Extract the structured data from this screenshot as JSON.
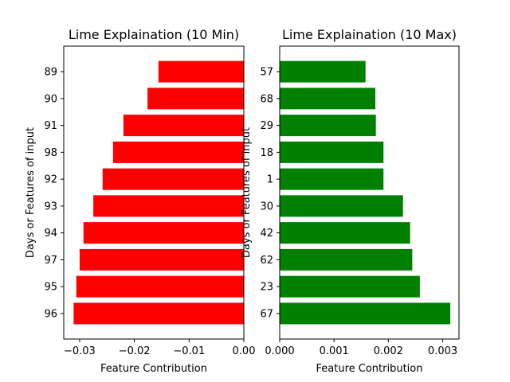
{
  "chart_data": [
    {
      "type": "bar",
      "orientation": "horizontal",
      "title": "Lime Explaination (10 Min)",
      "xlabel": "Feature Contribution",
      "ylabel": "Days or Features of input",
      "categories": [
        "96",
        "95",
        "97",
        "94",
        "93",
        "92",
        "98",
        "91",
        "90",
        "89"
      ],
      "values": [
        -0.0311,
        -0.0306,
        -0.03,
        -0.0293,
        -0.0275,
        -0.0258,
        -0.0239,
        -0.022,
        -0.0176,
        -0.0156
      ],
      "color": "#ff0000",
      "xlim": [
        -0.0329,
        0.0
      ],
      "xticks": [
        -0.03,
        -0.02,
        -0.01,
        0.0
      ],
      "xtick_labels": [
        "−0.03",
        "−0.02",
        "−0.01",
        "0.00"
      ],
      "grid": false
    },
    {
      "type": "bar",
      "orientation": "horizontal",
      "title": "Lime Explaination (10 Max)",
      "xlabel": "Feature Contribution",
      "ylabel": "Days or Features of input",
      "categories": [
        "67",
        "23",
        "62",
        "42",
        "30",
        "1",
        "18",
        "29",
        "68",
        "57"
      ],
      "values": [
        0.00314,
        0.00258,
        0.00244,
        0.0024,
        0.00227,
        0.00191,
        0.00191,
        0.00177,
        0.00176,
        0.00158
      ],
      "color": "#008000",
      "xlim": [
        0.0,
        0.0033
      ],
      "xticks": [
        0.0,
        0.001,
        0.002,
        0.003
      ],
      "xtick_labels": [
        "0.000",
        "0.001",
        "0.002",
        "0.003"
      ],
      "grid": false
    }
  ]
}
